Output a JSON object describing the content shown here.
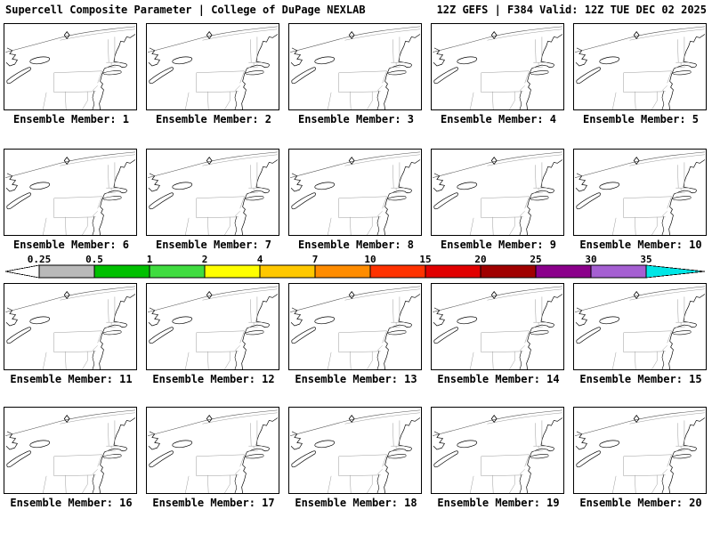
{
  "header": {
    "title_left": "Supercell Composite Parameter | College of DuPage NEXLAB",
    "title_right": "12Z GEFS | F384 Valid: 12Z TUE DEC 02 2025"
  },
  "panels": {
    "labels": [
      "Ensemble Member: 1",
      "Ensemble Member: 2",
      "Ensemble Member: 3",
      "Ensemble Member: 4",
      "Ensemble Member: 5",
      "Ensemble Member: 6",
      "Ensemble Member: 7",
      "Ensemble Member: 8",
      "Ensemble Member: 9",
      "Ensemble Member: 10",
      "Ensemble Member: 11",
      "Ensemble Member: 12",
      "Ensemble Member: 13",
      "Ensemble Member: 14",
      "Ensemble Member: 15",
      "Ensemble Member: 16",
      "Ensemble Member: 17",
      "Ensemble Member: 18",
      "Ensemble Member: 19",
      "Ensemble Member: 20"
    ]
  },
  "colorbar": {
    "tick_labels": [
      "0.25",
      "0.5",
      "1",
      "2",
      "4",
      "7",
      "10",
      "15",
      "20",
      "25",
      "30",
      "35"
    ],
    "colors": [
      "#ffffff",
      "#b9b9b9",
      "#00c000",
      "#40dc40",
      "#ffff00",
      "#ffc800",
      "#ff8c00",
      "#ff3200",
      "#e10000",
      "#a00000",
      "#8b008b",
      "#a55fd2",
      "#00e6e6"
    ]
  }
}
